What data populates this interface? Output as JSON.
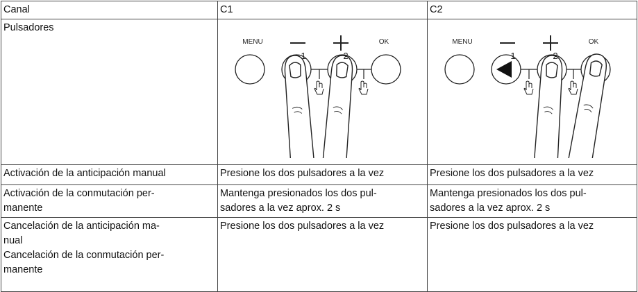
{
  "table": {
    "header": [
      "Canal",
      "C1",
      "C2"
    ],
    "rows": [
      [
        {
          "lines": [
            "Pulsadores"
          ]
        },
        {
          "figure": [
            "MENU",
            "OK",
            "1",
            "2"
          ]
        },
        {
          "figure": [
            "MENU",
            "OK",
            "1",
            "2"
          ]
        }
      ],
      [
        {
          "lines": [
            "Activación de la anticipación manual"
          ]
        },
        {
          "lines": [
            "Presione los dos pulsadores a la vez"
          ]
        },
        {
          "lines": [
            "Presione los dos pulsadores a la vez"
          ]
        }
      ],
      [
        {
          "lines": [
            "Activación de la conmutación per-",
            "manente"
          ]
        },
        {
          "lines": [
            "Mantenga presionados los dos pul-",
            "sadores a la vez aprox. 2 s"
          ]
        },
        {
          "lines": [
            "Mantenga presionados los dos pul-",
            "sadores a la vez aprox. 2 s"
          ]
        }
      ],
      [
        {
          "lines": [
            "Cancelación de la anticipación ma-",
            "nual",
            "Cancelación de la conmutación per-",
            "manente"
          ]
        },
        {
          "lines": [
            "Presione los dos pulsadores a la vez"
          ]
        },
        {
          "lines": [
            "Presione los dos pulsadores a la vez"
          ]
        }
      ]
    ]
  }
}
